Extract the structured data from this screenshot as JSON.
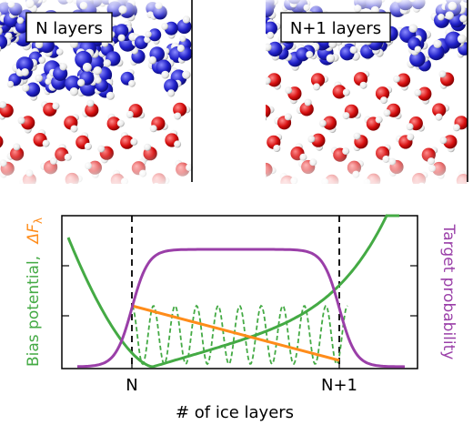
{
  "panels": {
    "left_label": "N layers",
    "right_label": "N+1 layers"
  },
  "plot": {
    "x_ticks": [
      "N",
      "N+1"
    ],
    "xlabel": "# of ice layers",
    "ylabel_left_part1": "Bias potential,",
    "ylabel_left_part2": "ΔF",
    "ylabel_left_sub": "λ",
    "ylabel_right": "Target probability"
  },
  "colors": {
    "liquid": "#1f1fbf",
    "ice": "#d01010",
    "bias": "#44aa44",
    "free_energy": "#ff8c1a",
    "probability": "#9a3fa8",
    "axis": "#000000"
  }
}
